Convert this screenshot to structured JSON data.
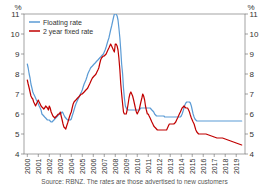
{
  "chart_data": {
    "type": "line",
    "source": "Source: RBNZ. The rates are those advertised to new customers",
    "y_label": "%",
    "y2_label": "%",
    "xlim": [
      1999.7,
      2019.8
    ],
    "xticks": [
      2000,
      2001,
      2002,
      2003,
      2004,
      2005,
      2006,
      2007,
      2008,
      2009,
      2010,
      2011,
      2012,
      2013,
      2014,
      2015,
      2016,
      2017,
      2018,
      2019
    ],
    "ylim": [
      4,
      11
    ],
    "yticks": [
      4,
      5,
      6,
      7,
      8,
      9,
      10,
      11
    ],
    "y2lim": [
      4,
      11
    ],
    "y2ticks": [
      4,
      5,
      6,
      7,
      8,
      9,
      10,
      11
    ],
    "grid": false,
    "legend": "top-left",
    "x": [
      2000.0,
      2000.08,
      2000.17,
      2000.25,
      2000.33,
      2000.42,
      2000.5,
      2000.58,
      2000.67,
      2000.75,
      2000.83,
      2000.92,
      2001.0,
      2001.08,
      2001.17,
      2001.25,
      2001.33,
      2001.42,
      2001.5,
      2001.58,
      2001.67,
      2001.75,
      2001.83,
      2001.92,
      2002.0,
      2002.08,
      2002.17,
      2002.25,
      2002.33,
      2002.42,
      2002.5,
      2002.58,
      2002.67,
      2002.75,
      2002.83,
      2002.92,
      2003.0,
      2003.08,
      2003.17,
      2003.25,
      2003.33,
      2003.42,
      2003.5,
      2003.58,
      2003.67,
      2003.75,
      2003.83,
      2003.92,
      2004.0,
      2004.08,
      2004.17,
      2004.25,
      2004.33,
      2004.42,
      2004.5,
      2004.58,
      2004.67,
      2004.75,
      2004.83,
      2004.92,
      2005.0,
      2005.08,
      2005.17,
      2005.25,
      2005.33,
      2005.42,
      2005.5,
      2005.58,
      2005.67,
      2005.75,
      2005.83,
      2005.92,
      2006.0,
      2006.08,
      2006.17,
      2006.25,
      2006.33,
      2006.42,
      2006.5,
      2006.58,
      2006.67,
      2006.75,
      2006.83,
      2006.92,
      2007.0,
      2007.08,
      2007.17,
      2007.25,
      2007.33,
      2007.42,
      2007.5,
      2007.58,
      2007.67,
      2007.75,
      2007.83,
      2007.92,
      2008.0,
      2008.08,
      2008.17,
      2008.25,
      2008.33,
      2008.42,
      2008.5,
      2008.58,
      2008.67,
      2008.75,
      2008.83,
      2008.92,
      2009.0,
      2009.08,
      2009.17,
      2009.25,
      2009.33,
      2009.42,
      2009.5,
      2009.58,
      2009.67,
      2009.75,
      2009.83,
      2009.92,
      2010.0,
      2010.08,
      2010.17,
      2010.25,
      2010.33,
      2010.42,
      2010.5,
      2010.58,
      2010.67,
      2010.75,
      2010.83,
      2010.92,
      2011.0,
      2011.08,
      2011.17,
      2011.25,
      2011.33,
      2011.42,
      2011.5,
      2011.58,
      2011.67,
      2011.75,
      2011.83,
      2011.92,
      2012.0,
      2012.08,
      2012.17,
      2012.25,
      2012.33,
      2012.42,
      2012.5,
      2012.58,
      2012.67,
      2012.75,
      2012.83,
      2012.92,
      2013.0,
      2013.08,
      2013.17,
      2013.25,
      2013.33,
      2013.42,
      2013.5,
      2013.58,
      2013.67,
      2013.75,
      2013.83,
      2013.92,
      2014.0,
      2014.08,
      2014.17,
      2014.25,
      2014.33,
      2014.42,
      2014.5,
      2014.58,
      2014.67,
      2014.75,
      2014.83,
      2014.92,
      2015.0,
      2015.08,
      2015.17,
      2015.25,
      2015.33,
      2015.42,
      2015.5,
      2015.58,
      2015.67,
      2015.75,
      2015.83,
      2015.92,
      2016.0,
      2016.25,
      2016.5,
      2016.75,
      2017.0,
      2017.25,
      2017.5,
      2017.75,
      2018.0,
      2018.25,
      2018.5,
      2018.75,
      2019.0,
      2019.25,
      2019.5
    ],
    "series": [
      {
        "name": "Floating rate",
        "color": "#5B9BD5",
        "values": [
          8.5,
          8.3,
          8.0,
          7.8,
          7.5,
          7.3,
          7.1,
          7.0,
          6.9,
          6.8,
          6.7,
          6.6,
          6.5,
          6.4,
          6.3,
          6.2,
          6.0,
          5.95,
          5.9,
          5.85,
          5.8,
          5.75,
          5.7,
          5.7,
          5.7,
          5.65,
          5.6,
          5.6,
          5.65,
          5.7,
          5.75,
          5.8,
          5.85,
          5.9,
          5.95,
          6.0,
          6.0,
          6.05,
          6.1,
          6.05,
          5.95,
          5.85,
          5.8,
          5.75,
          5.7,
          5.7,
          5.7,
          5.7,
          5.75,
          5.9,
          6.05,
          6.2,
          6.35,
          6.5,
          6.6,
          6.7,
          6.8,
          6.9,
          7.0,
          7.1,
          7.2,
          7.35,
          7.5,
          7.6,
          7.7,
          7.85,
          8.0,
          8.1,
          8.2,
          8.3,
          8.35,
          8.4,
          8.45,
          8.5,
          8.55,
          8.6,
          8.65,
          8.7,
          8.75,
          8.8,
          8.85,
          8.9,
          8.95,
          9.0,
          9.1,
          9.2,
          9.35,
          9.5,
          9.65,
          9.8,
          10.0,
          10.2,
          10.4,
          10.6,
          10.8,
          11.0,
          11.0,
          11.0,
          10.9,
          10.7,
          10.3,
          9.8,
          9.2,
          8.5,
          8.0,
          7.3,
          6.8,
          6.4,
          6.3,
          6.25,
          6.2,
          6.2,
          6.2,
          6.2,
          6.2,
          6.2,
          6.2,
          6.2,
          6.2,
          6.2,
          6.2,
          6.2,
          6.2,
          6.25,
          6.3,
          6.3,
          6.3,
          6.3,
          6.3,
          6.3,
          6.3,
          6.3,
          6.3,
          6.3,
          6.3,
          6.25,
          6.2,
          6.15,
          6.1,
          6.0,
          5.95,
          5.9,
          5.9,
          5.9,
          5.9,
          5.9,
          5.9,
          5.9,
          5.9,
          5.9,
          5.85,
          5.85,
          5.85,
          5.85,
          5.85,
          5.85,
          5.85,
          5.85,
          5.85,
          5.85,
          5.85,
          5.85,
          5.85,
          5.85,
          5.85,
          5.85,
          5.85,
          5.85,
          5.9,
          6.0,
          6.15,
          6.3,
          6.45,
          6.55,
          6.6,
          6.6,
          6.6,
          6.6,
          6.55,
          6.4,
          6.2,
          6.0,
          5.85,
          5.75,
          5.7,
          5.65,
          5.65,
          5.65,
          5.65,
          5.65,
          5.65,
          5.65,
          5.65,
          5.65,
          5.65,
          5.65,
          5.65,
          5.65,
          5.65,
          5.65,
          5.65,
          5.65,
          5.65,
          5.65,
          5.65,
          5.65,
          5.65
        ]
      },
      {
        "name": "2 year fixed rate",
        "color": "#C00000",
        "values": [
          7.7,
          7.5,
          7.3,
          7.1,
          6.9,
          6.8,
          6.75,
          6.6,
          6.5,
          6.4,
          6.5,
          6.6,
          6.7,
          6.6,
          6.5,
          6.4,
          6.35,
          6.3,
          6.25,
          6.3,
          6.4,
          6.35,
          6.3,
          6.2,
          6.4,
          6.3,
          6.1,
          6.0,
          5.9,
          5.85,
          5.8,
          5.85,
          5.9,
          5.95,
          6.0,
          6.0,
          6.1,
          5.9,
          5.7,
          5.5,
          5.35,
          5.3,
          5.25,
          5.4,
          5.55,
          5.7,
          5.85,
          6.0,
          6.1,
          6.3,
          6.5,
          6.6,
          6.65,
          6.7,
          6.75,
          6.8,
          6.85,
          6.9,
          6.95,
          7.0,
          7.0,
          7.05,
          7.1,
          7.15,
          7.2,
          7.25,
          7.3,
          7.4,
          7.5,
          7.6,
          7.7,
          7.8,
          7.85,
          7.9,
          7.95,
          8.0,
          8.1,
          8.2,
          8.3,
          8.5,
          8.7,
          8.8,
          8.85,
          8.9,
          8.9,
          8.95,
          9.0,
          9.1,
          9.2,
          9.3,
          9.4,
          9.5,
          9.4,
          9.3,
          9.2,
          9.1,
          9.5,
          9.5,
          9.4,
          9.2,
          8.8,
          8.2,
          7.5,
          7.0,
          6.5,
          6.1,
          6.0,
          6.0,
          6.0,
          6.2,
          6.5,
          6.8,
          7.0,
          7.1,
          7.0,
          6.9,
          6.7,
          6.5,
          6.3,
          6.1,
          6.0,
          6.1,
          6.2,
          6.4,
          6.6,
          6.8,
          7.0,
          6.9,
          6.7,
          6.4,
          6.2,
          6.0,
          6.0,
          5.9,
          5.8,
          5.7,
          5.6,
          5.5,
          5.4,
          5.35,
          5.3,
          5.25,
          5.2,
          5.2,
          5.2,
          5.2,
          5.2,
          5.2,
          5.2,
          5.2,
          5.2,
          5.2,
          5.2,
          5.3,
          5.4,
          5.5,
          5.5,
          5.5,
          5.5,
          5.5,
          5.5,
          5.55,
          5.6,
          5.7,
          5.8,
          5.9,
          6.0,
          6.1,
          6.2,
          6.3,
          6.35,
          6.4,
          6.35,
          6.3,
          6.3,
          6.3,
          6.2,
          6.1,
          5.95,
          5.8,
          5.7,
          5.6,
          5.5,
          5.35,
          5.2,
          5.1,
          5.05,
          5.0,
          5.0,
          5.0,
          5.0,
          5.0,
          5.0,
          5.0,
          4.95,
          4.9,
          4.85,
          4.8,
          4.8,
          4.8,
          4.75,
          4.7,
          4.65,
          4.6,
          4.55,
          4.5,
          4.45
        ]
      }
    ]
  }
}
